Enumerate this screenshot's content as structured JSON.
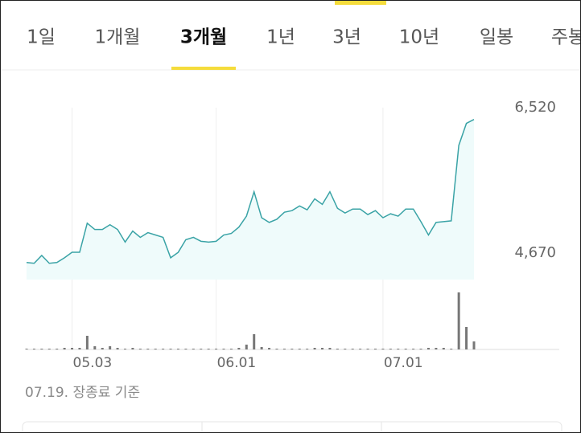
{
  "tabs": {
    "items": [
      "1일",
      "1개월",
      "3개월",
      "1년",
      "3년",
      "10년",
      "일봉",
      "주봉"
    ],
    "selected": 2
  },
  "chart_data": {
    "type": "line",
    "categories": [
      null,
      null,
      null,
      null,
      null,
      null,
      "05.03",
      null,
      null,
      null,
      null,
      null,
      null,
      null,
      null,
      null,
      null,
      null,
      null,
      null,
      null,
      null,
      null,
      null,
      null,
      "06.01",
      null,
      null,
      null,
      null,
      null,
      null,
      null,
      null,
      null,
      null,
      null,
      null,
      null,
      null,
      null,
      null,
      null,
      null,
      null,
      null,
      null,
      "07.01",
      null,
      null,
      null,
      null,
      null,
      null,
      null,
      null,
      null,
      null,
      null,
      null
    ],
    "series": [
      {
        "name": "price",
        "color": "#3aa3a6",
        "values": [
          4550,
          4540,
          4640,
          4540,
          4550,
          4610,
          4680,
          4680,
          5050,
          4970,
          4970,
          5030,
          4970,
          4810,
          4950,
          4870,
          4930,
          4900,
          4870,
          4610,
          4680,
          4840,
          4870,
          4820,
          4810,
          4820,
          4900,
          4920,
          5000,
          5140,
          5450,
          5120,
          5060,
          5100,
          5190,
          5210,
          5270,
          5220,
          5360,
          5290,
          5450,
          5240,
          5180,
          5230,
          5230,
          5160,
          5210,
          5120,
          5170,
          5140,
          5230,
          5230,
          5070,
          4900,
          5060,
          5070,
          5080,
          6040,
          6320,
          6370
        ]
      },
      {
        "name": "volume",
        "color": "#777777",
        "values": [
          1,
          1,
          1,
          1,
          1,
          2,
          2,
          2,
          17,
          4,
          2,
          4,
          2,
          1,
          2,
          1,
          1,
          1,
          1,
          1,
          1,
          1,
          1,
          1,
          1,
          1,
          1,
          1,
          2,
          6,
          19,
          3,
          2,
          1,
          1,
          1,
          1,
          1,
          2,
          2,
          2,
          1,
          1,
          1,
          1,
          1,
          1,
          1,
          1,
          1,
          1,
          1,
          1,
          2,
          2,
          2,
          1,
          71,
          28,
          10
        ]
      }
    ],
    "ylim": [
      4333,
      6520
    ],
    "yticks": [
      {
        "value": 6520,
        "label": "6,520"
      },
      {
        "value": 4670,
        "label": "4,670"
      }
    ],
    "vlim": [
      0,
      74
    ],
    "footnote": "07.19. 장종료 기준"
  }
}
